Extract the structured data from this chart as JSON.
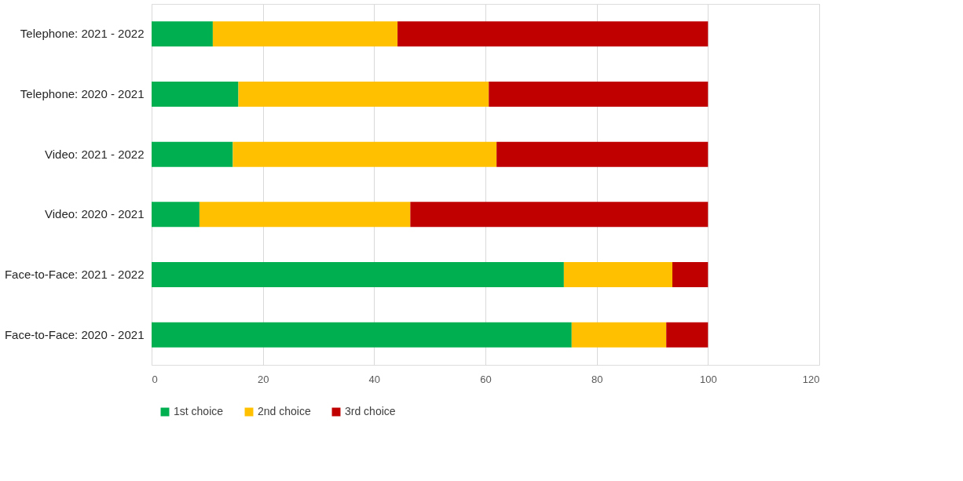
{
  "chart_data": {
    "type": "bar",
    "orientation": "horizontal",
    "stacked": true,
    "categories": [
      "Telephone: 2021 - 2022",
      "Telephone: 2020 - 2021",
      "Video: 2021 - 2022",
      "Video: 2020 - 2021",
      "Face-to-Face: 2021 - 2022",
      "Face-to-Face: 2020 - 2021"
    ],
    "series": [
      {
        "name": "1st choice",
        "color": "#00b050",
        "values": [
          11.0,
          15.6,
          14.6,
          8.6,
          74.1,
          75.5
        ]
      },
      {
        "name": "2nd choice",
        "color": "#ffc000",
        "values": [
          33.2,
          45.0,
          47.4,
          37.9,
          19.5,
          17.0
        ]
      },
      {
        "name": "3rd choice",
        "color": "#c00000",
        "values": [
          55.8,
          39.4,
          38.0,
          53.5,
          6.4,
          7.5
        ]
      }
    ],
    "xlim": [
      0,
      120
    ],
    "xticks": [
      0,
      20,
      40,
      60,
      80,
      100,
      120
    ],
    "grid": "x",
    "legend": "bottom"
  }
}
